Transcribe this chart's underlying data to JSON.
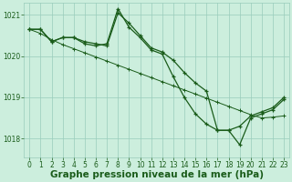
{
  "background_color": "#cceedd",
  "grid_color": "#99ccbb",
  "line_color": "#1a5c1a",
  "xlabel": "Graphe pression niveau de la mer (hPa)",
  "xlabel_fontsize": 7.5,
  "tick_fontsize": 5.5,
  "xlim": [
    -0.5,
    23.5
  ],
  "ylim": [
    1017.55,
    1021.3
  ],
  "yticks": [
    1018,
    1019,
    1020,
    1021
  ],
  "xticks": [
    0,
    1,
    2,
    3,
    4,
    5,
    6,
    7,
    8,
    9,
    10,
    11,
    12,
    13,
    14,
    15,
    16,
    17,
    18,
    19,
    20,
    21,
    22,
    23
  ],
  "series1_x": [
    0,
    1,
    2,
    3,
    4,
    5,
    6,
    7,
    8,
    9,
    10,
    11,
    12,
    13,
    14,
    15,
    16,
    17,
    18,
    19,
    20,
    21,
    22,
    23
  ],
  "series1_y": [
    1020.65,
    1020.65,
    1020.35,
    1020.45,
    1020.45,
    1020.35,
    1020.3,
    1020.25,
    1021.05,
    1020.8,
    1020.5,
    1020.2,
    1020.1,
    1019.9,
    1019.6,
    1019.35,
    1019.15,
    1018.2,
    1018.2,
    1018.3,
    1018.55,
    1018.65,
    1018.75,
    1019.0
  ],
  "series2_x": [
    0,
    1,
    2,
    3,
    4,
    5,
    6,
    7,
    8,
    9,
    10,
    11,
    12,
    13,
    14,
    15,
    16,
    17,
    18,
    19,
    20,
    21,
    22,
    23
  ],
  "series2_y": [
    1020.65,
    1020.65,
    1020.35,
    1020.45,
    1020.45,
    1020.3,
    1020.25,
    1020.3,
    1021.15,
    1020.7,
    1020.45,
    1020.15,
    1020.05,
    1019.5,
    1019.0,
    1018.6,
    1018.35,
    1018.2,
    1018.2,
    1017.85,
    1018.5,
    1018.6,
    1018.7,
    1018.95
  ],
  "series3_x": [
    0,
    1,
    2,
    3,
    4,
    5,
    6,
    7,
    8,
    9,
    10,
    11,
    12,
    13,
    14,
    15,
    16,
    17,
    18,
    19,
    20,
    21,
    22,
    23
  ],
  "series3_y": [
    1020.65,
    1020.55,
    1020.4,
    1020.28,
    1020.18,
    1020.08,
    1019.98,
    1019.88,
    1019.78,
    1019.68,
    1019.58,
    1019.48,
    1019.38,
    1019.28,
    1019.18,
    1019.08,
    1018.98,
    1018.88,
    1018.78,
    1018.68,
    1018.58,
    1018.5,
    1018.52,
    1018.55
  ]
}
